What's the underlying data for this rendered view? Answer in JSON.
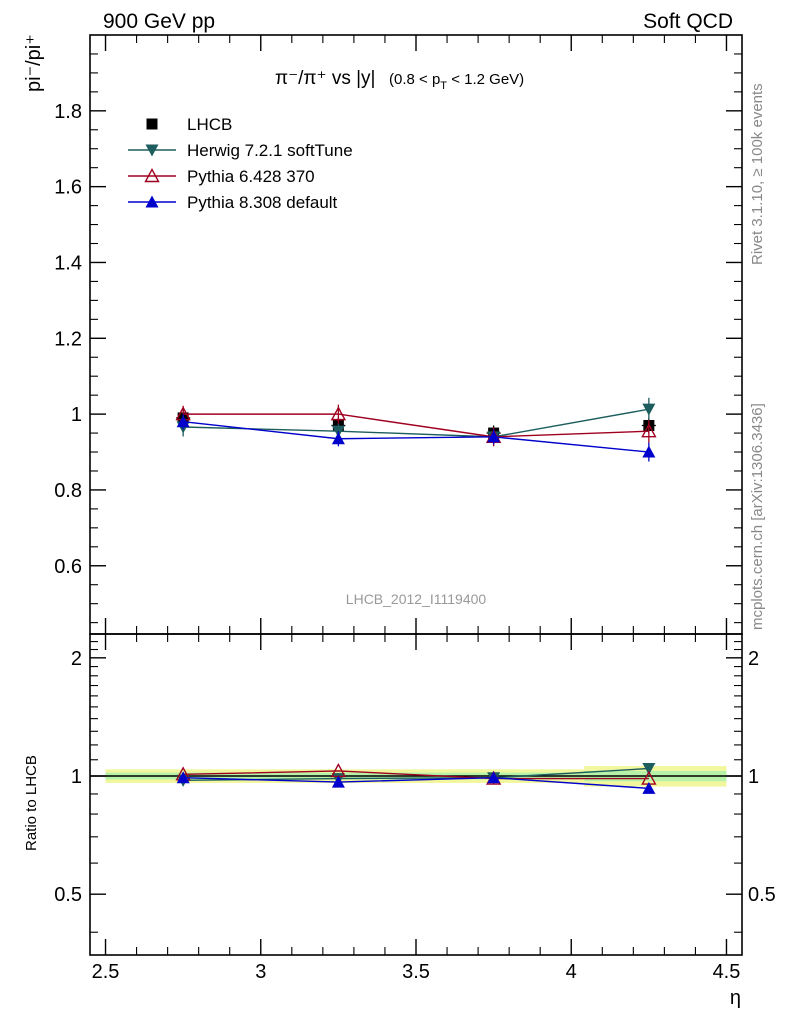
{
  "header": {
    "left": "900 GeV pp",
    "right": "Soft QCD"
  },
  "side_text": {
    "rivet": "Rivet 3.1.10, ≥ 100k events",
    "source": "mcplots.cern.ch [arXiv:1306.3436]"
  },
  "plot_title": {
    "main": "π⁻/π⁺ vs |y|",
    "range": "(0.8 < p",
    "range_sub": "T",
    "range_tail": " < 1.2 GeV)"
  },
  "watermark": "LHCB_2012_I1119400",
  "chart_data": [
    {
      "type": "line",
      "panel": "main",
      "ylabel": "pi⁻/pi⁺",
      "xlim": [
        2.45,
        4.55
      ],
      "ylim": [
        0.42,
        2.0
      ],
      "yticks": [
        0.6,
        0.8,
        1,
        1.2,
        1.4,
        1.6,
        1.8
      ],
      "ytick_labels": [
        "0.6",
        "0.8",
        "1",
        "1.2",
        "1.4",
        "1.6",
        "1.8"
      ],
      "legend_position": "top-left",
      "series": [
        {
          "name": "LHCB",
          "color": "#000000",
          "marker": "square",
          "x": [
            2.75,
            3.25,
            3.75,
            4.25
          ],
          "y": [
            0.99,
            0.97,
            0.95,
            0.97
          ],
          "err": [
            0.02,
            0.02,
            0.02,
            0.02
          ],
          "line": false
        },
        {
          "name": "Herwig 7.2.1 softTune",
          "color": "#1d5d5d",
          "marker": "triangle-down",
          "x": [
            2.75,
            3.25,
            3.75,
            4.25
          ],
          "y": [
            0.966,
            0.955,
            0.94,
            1.013
          ],
          "err": [
            0.025,
            0.02,
            0.02,
            0.03
          ],
          "line": true
        },
        {
          "name": "Pythia 6.428 370",
          "color": "#a00020",
          "marker": "triangle-up-open",
          "x": [
            2.75,
            3.25,
            3.75,
            4.25
          ],
          "y": [
            1.0,
            1.0,
            0.94,
            0.955
          ],
          "err": [
            0.022,
            0.025,
            0.025,
            0.03
          ],
          "line": true
        },
        {
          "name": "Pythia 8.308 default",
          "color": "#0000cc",
          "marker": "triangle-up",
          "x": [
            2.75,
            3.25,
            3.75,
            4.25
          ],
          "y": [
            0.98,
            0.935,
            0.94,
            0.9
          ],
          "err": [
            0.02,
            0.02,
            0.02,
            0.025
          ],
          "line": true
        }
      ]
    },
    {
      "type": "line",
      "panel": "ratio",
      "ylabel": "Ratio to LHCB",
      "xlabel": "η",
      "xlim": [
        2.45,
        4.55
      ],
      "ylim": [
        0.35,
        2.3
      ],
      "yticks": [
        0.5,
        1,
        2
      ],
      "ytick_labels": [
        "0.5",
        "1",
        "2"
      ],
      "xticks": [
        2.5,
        3,
        3.5,
        4,
        4.5
      ],
      "xtick_labels": [
        "2.5",
        "3",
        "3.5",
        "4",
        "4.5"
      ],
      "band": {
        "x": [
          2.5,
          3.0,
          3.5,
          4.0,
          4.5
        ],
        "inner": [
          0.02,
          0.02,
          0.02,
          0.03,
          0.03
        ],
        "outer": [
          0.04,
          0.04,
          0.04,
          0.06,
          0.07
        ],
        "inner_color": "#b6f2a8",
        "outer_color": "#f2f79e"
      },
      "series": [
        {
          "name": "Herwig 7.2.1 softTune",
          "color": "#1d5d5d",
          "marker": "triangle-down",
          "x": [
            2.75,
            3.25,
            3.75,
            4.25
          ],
          "y": [
            0.975,
            0.985,
            0.99,
            1.045
          ]
        },
        {
          "name": "Pythia 6.428 370",
          "color": "#a00020",
          "marker": "triangle-up-open",
          "x": [
            2.75,
            3.25,
            3.75,
            4.25
          ],
          "y": [
            1.01,
            1.03,
            0.985,
            0.985
          ]
        },
        {
          "name": "Pythia 8.308 default",
          "color": "#0000cc",
          "marker": "triangle-up",
          "x": [
            2.75,
            3.25,
            3.75,
            4.25
          ],
          "y": [
            0.99,
            0.965,
            0.99,
            0.93
          ]
        }
      ]
    }
  ]
}
